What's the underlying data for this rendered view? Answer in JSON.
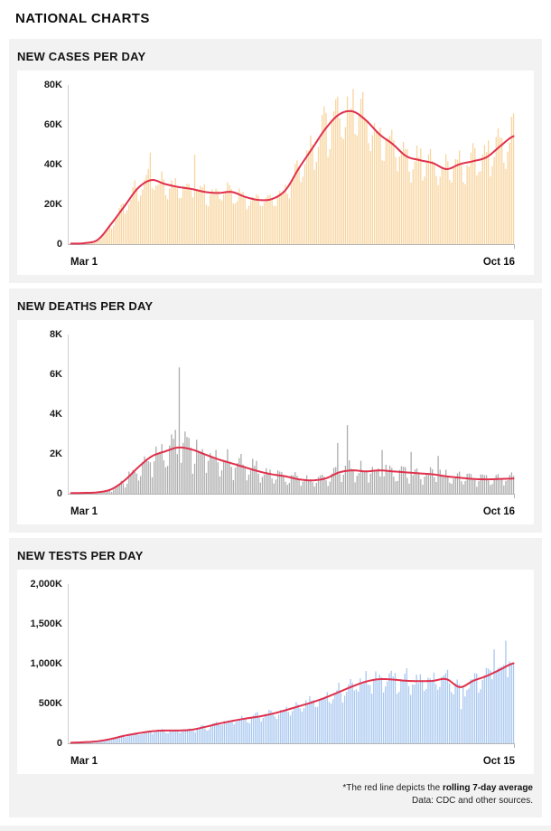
{
  "page": {
    "title": "NATIONAL CHARTS"
  },
  "footnote": {
    "prefix": "*The red line depicts the ",
    "bold": "rolling 7-day average",
    "source": "Data: CDC and other sources."
  },
  "colors": {
    "rolling_avg_line": "#e0304c",
    "cases_bar": "#f8d5a0",
    "deaths_bar": "#adadad",
    "tests_bar": "#a9c8f0",
    "panel_bg": "#f2f2f2"
  },
  "chart_data": [
    {
      "type": "bar",
      "title": "NEW CASES PER DAY",
      "unit": "K",
      "x_start": "Mar 1",
      "x_end": "Oct 16",
      "n_days": 230,
      "ylim": [
        0,
        80
      ],
      "grid": false,
      "legend": "none",
      "y_ticks": [
        {
          "label": "80K",
          "value": 80
        },
        {
          "label": "60K",
          "value": 60
        },
        {
          "label": "40K",
          "value": 40
        },
        {
          "label": "20K",
          "value": 20
        },
        {
          "label": "0",
          "value": 0
        }
      ],
      "rolling_avg_weekly": [
        0.05,
        0.3,
        2,
        10,
        19,
        28,
        32,
        30,
        28.5,
        27.5,
        26,
        25.5,
        26,
        23.5,
        22,
        22.5,
        27,
        38,
        48,
        58,
        65,
        66.5,
        62,
        55,
        50,
        44,
        42,
        40.5,
        37.5,
        40,
        41.5,
        43.5,
        49,
        54
      ],
      "spikes": {
        "41": 46,
        "64": 45,
        "146": 78,
        "228": 64
      },
      "weekday_factors": [
        0.82,
        0.8,
        0.95,
        1.05,
        1.1,
        1.12,
        1.08
      ],
      "noise_amp": 0.1,
      "seed": 11,
      "bar_color": "#f8d5a0",
      "line_color": "#e0304c"
    },
    {
      "type": "bar",
      "title": "NEW DEATHS PER DAY",
      "unit": "K",
      "x_start": "Mar 1",
      "x_end": "Oct 16",
      "n_days": 230,
      "ylim": [
        0,
        8
      ],
      "grid": false,
      "legend": "none",
      "y_ticks": [
        {
          "label": "8K",
          "value": 8
        },
        {
          "label": "6K",
          "value": 6
        },
        {
          "label": "4K",
          "value": 4
        },
        {
          "label": "2K",
          "value": 2
        },
        {
          "label": "0",
          "value": 0
        }
      ],
      "rolling_avg_weekly": [
        0.01,
        0.02,
        0.05,
        0.2,
        0.65,
        1.3,
        1.85,
        2.1,
        2.3,
        2.2,
        1.95,
        1.7,
        1.5,
        1.3,
        1.1,
        0.95,
        0.85,
        0.7,
        0.65,
        0.75,
        1.05,
        1.15,
        1.1,
        1.15,
        1.1,
        1.05,
        1.0,
        0.95,
        0.85,
        0.78,
        0.72,
        0.7,
        0.72,
        0.74
      ],
      "spikes": {
        "56": 6.35,
        "138": 2.55,
        "143": 3.45,
        "161": 2.2,
        "176": 2.1,
        "190": 1.9
      },
      "weekday_factors": [
        0.55,
        0.75,
        1.15,
        1.25,
        1.25,
        1.2,
        0.9
      ],
      "noise_amp": 0.22,
      "seed": 22,
      "bar_color": "#adadad",
      "line_color": "#e0304c"
    },
    {
      "type": "bar",
      "title": "NEW TESTS PER DAY",
      "unit": "K",
      "x_start": "Mar 1",
      "x_end": "Oct 15",
      "n_days": 229,
      "ylim": [
        0,
        2000
      ],
      "grid": false,
      "legend": "none",
      "y_ticks": [
        {
          "label": "2,000K",
          "value": 2000
        },
        {
          "label": "1,500K",
          "value": 1500
        },
        {
          "label": "1,000K",
          "value": 1000
        },
        {
          "label": "500K",
          "value": 500
        },
        {
          "label": "0",
          "value": 0
        }
      ],
      "rolling_avg_weekly": [
        2,
        8,
        20,
        50,
        90,
        120,
        145,
        155,
        155,
        165,
        200,
        240,
        275,
        305,
        330,
        365,
        410,
        460,
        510,
        570,
        640,
        710,
        770,
        800,
        795,
        780,
        775,
        780,
        800,
        700,
        780,
        840,
        920,
        1000
      ],
      "spikes": {
        "121": 540,
        "201": 430,
        "218": 1180,
        "224": 1290
      },
      "weekday_factors": [
        0.85,
        0.88,
        1.0,
        1.05,
        1.08,
        1.1,
        1.02
      ],
      "noise_amp": 0.1,
      "seed": 33,
      "bar_color": "#a9c8f0",
      "line_color": "#e0304c"
    }
  ]
}
